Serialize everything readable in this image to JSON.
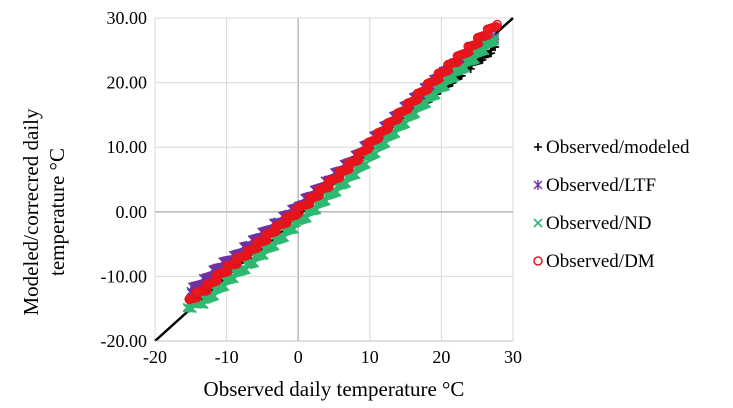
{
  "chart_data": {
    "type": "scatter",
    "title": "",
    "xlabel": "Observed daily temperature °C",
    "ylabel_line1": "Modeled/correcred daily",
    "ylabel_line2": "temperature °C",
    "xlim": [
      -20,
      30
    ],
    "ylim": [
      -20,
      30
    ],
    "x_ticks": [
      -20,
      -10,
      0,
      10,
      20,
      30
    ],
    "x_tick_labels": [
      "-20",
      "-10",
      "0",
      "10",
      "20",
      "30"
    ],
    "y_ticks": [
      -20,
      -10,
      0,
      10,
      20,
      30
    ],
    "y_tick_labels": [
      "-20.00",
      "-10.00",
      "0.00",
      "10.00",
      "20.00",
      "30.00"
    ],
    "grid": true,
    "legend_position": "right",
    "reference_line": {
      "from": [
        -20,
        -20
      ],
      "to": [
        30,
        30
      ],
      "color": "#000000"
    },
    "series": [
      {
        "name": "Observed/modeled",
        "marker": "plus",
        "color": "#000000",
        "x": [
          -15,
          -13,
          -11,
          -9,
          -7,
          -5,
          -3,
          -1,
          0,
          2,
          4,
          6,
          8,
          10,
          12,
          14,
          16,
          18,
          20,
          22,
          24,
          26,
          27.5
        ],
        "y": [
          -14,
          -12.6,
          -10.8,
          -8.9,
          -7,
          -5,
          -3,
          -1,
          0,
          2,
          4,
          6,
          8,
          10,
          12,
          14,
          15.7,
          17.4,
          19.1,
          20.8,
          22.5,
          24.2,
          25.5
        ]
      },
      {
        "name": "Observed/LTF",
        "marker": "asterisk",
        "color": "#7030a0",
        "x": [
          -15,
          -13,
          -11,
          -9,
          -7,
          -5,
          -3,
          -1,
          0,
          2,
          4,
          6,
          8,
          10,
          12,
          14,
          16,
          18,
          20,
          22,
          24,
          26,
          27.5
        ],
        "y": [
          -12.3,
          -10.5,
          -8.5,
          -7,
          -5.3,
          -3.5,
          -1.8,
          -0.1,
          0.8,
          2.7,
          4.6,
          6.5,
          8.5,
          10.7,
          12.9,
          15.1,
          17.2,
          19.2,
          21.1,
          22.9,
          24.6,
          26.2,
          27.2
        ]
      },
      {
        "name": "Observed/ND",
        "marker": "x",
        "color": "#2eb872",
        "x": [
          -15.5,
          -13,
          -11,
          -9,
          -7,
          -5,
          -3,
          -1,
          0,
          2,
          4,
          6,
          8,
          10,
          12,
          14,
          16,
          18,
          20,
          22,
          24,
          26,
          27.5
        ],
        "y": [
          -14.8,
          -14,
          -11.8,
          -10,
          -8.3,
          -6.5,
          -4.6,
          -2.6,
          -1.7,
          0.2,
          2.1,
          4.1,
          6.1,
          8.5,
          10.8,
          13,
          15.2,
          17.3,
          19.3,
          21.3,
          23.3,
          25.3,
          27
        ]
      },
      {
        "name": "Observed/DM",
        "marker": "circle",
        "color": "#e8141b",
        "x": [
          -15.2,
          -13,
          -11,
          -9,
          -7,
          -5,
          -3,
          -1,
          0,
          2,
          4,
          6,
          8,
          10,
          12,
          14,
          16,
          18,
          20,
          22,
          24,
          26,
          27.8
        ],
        "y": [
          -13.6,
          -12,
          -9.8,
          -8,
          -6.3,
          -4.5,
          -2.6,
          -0.7,
          0.2,
          2.1,
          4,
          6,
          8,
          10.5,
          12.7,
          14.9,
          17.1,
          19.3,
          21.4,
          23.4,
          25.4,
          27.4,
          29
        ]
      }
    ]
  }
}
